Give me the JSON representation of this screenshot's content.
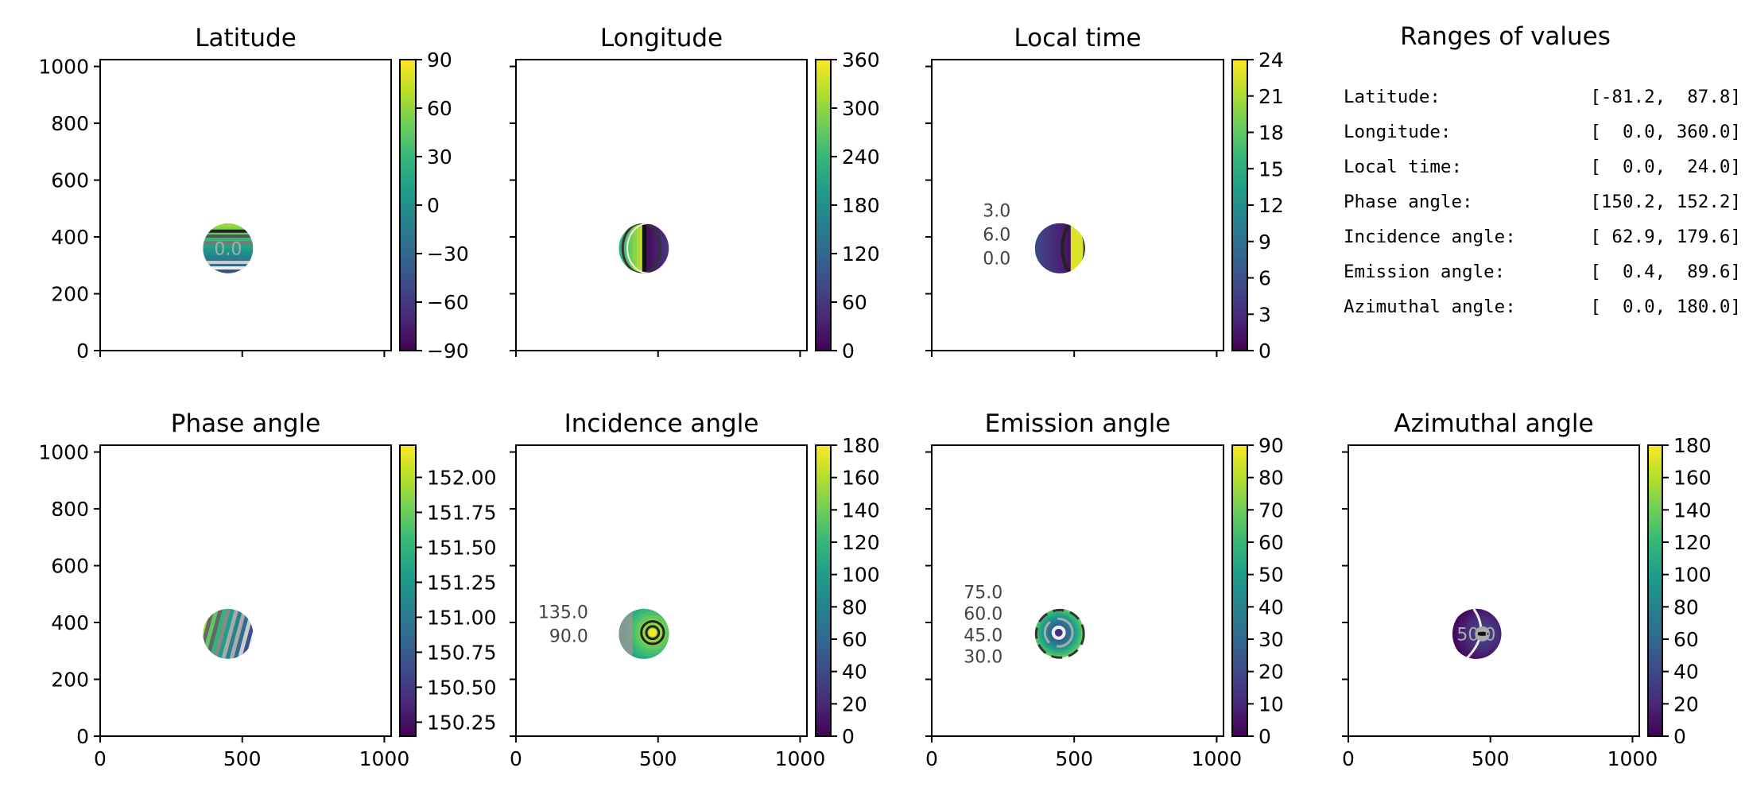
{
  "figure": {
    "colormap": "viridis",
    "viridis_stops": [
      "#440154",
      "#482878",
      "#3e4989",
      "#31688e",
      "#26828e",
      "#1f9e89",
      "#35b779",
      "#6ece58",
      "#b5de2b",
      "#fde725"
    ]
  },
  "chart_data": [
    {
      "type": "heatmap",
      "title": "Latitude",
      "xlim": [
        0,
        1024
      ],
      "ylim": [
        0,
        1024
      ],
      "xticks": [
        "0",
        "500",
        "1000"
      ],
      "xtick_values": [
        0,
        500,
        1000
      ],
      "show_xticklabels": false,
      "yticks": [
        "0",
        "200",
        "400",
        "600",
        "800",
        "1000"
      ],
      "ytick_values": [
        0,
        200,
        400,
        600,
        800,
        1000
      ],
      "show_yticklabels": true,
      "colorbar": {
        "range": [
          -90,
          90
        ],
        "ticks": [
          "−90",
          "−60",
          "−30",
          "0",
          "30",
          "60",
          "90"
        ],
        "tick_values": [
          -90,
          -60,
          -30,
          0,
          30,
          60,
          90
        ]
      },
      "disk": {
        "center": [
          450,
          360
        ],
        "radius": 88,
        "pattern": "latitude"
      },
      "contour_labels": [
        "0.0"
      ],
      "value_range": [
        -81.2,
        87.8
      ]
    },
    {
      "type": "heatmap",
      "title": "Longitude",
      "xlim": [
        0,
        1024
      ],
      "ylim": [
        0,
        1024
      ],
      "xticks": [
        "0",
        "500",
        "1000"
      ],
      "xtick_values": [
        0,
        500,
        1000
      ],
      "show_xticklabels": false,
      "yticks": [
        "0",
        "200",
        "400",
        "600",
        "800",
        "1000"
      ],
      "ytick_values": [
        0,
        200,
        400,
        600,
        800,
        1000
      ],
      "show_yticklabels": false,
      "colorbar": {
        "range": [
          0,
          360
        ],
        "ticks": [
          "0",
          "60",
          "120",
          "180",
          "240",
          "300",
          "360"
        ],
        "tick_values": [
          0,
          60,
          120,
          180,
          240,
          300,
          360
        ]
      },
      "disk": {
        "center": [
          450,
          360
        ],
        "radius": 88,
        "pattern": "longitude"
      },
      "contour_labels": [],
      "value_range": [
        0.0,
        360.0
      ]
    },
    {
      "type": "heatmap",
      "title": "Local time",
      "xlim": [
        0,
        1024
      ],
      "ylim": [
        0,
        1024
      ],
      "xticks": [
        "0",
        "500",
        "1000"
      ],
      "xtick_values": [
        0,
        500,
        1000
      ],
      "show_xticklabels": false,
      "yticks": [
        "0",
        "200",
        "400",
        "600",
        "800",
        "1000"
      ],
      "ytick_values": [
        0,
        200,
        400,
        600,
        800,
        1000
      ],
      "show_yticklabels": false,
      "colorbar": {
        "range": [
          0,
          24
        ],
        "ticks": [
          "0",
          "3",
          "6",
          "9",
          "12",
          "15",
          "18",
          "21",
          "24"
        ],
        "tick_values": [
          0,
          3,
          6,
          9,
          12,
          15,
          18,
          21,
          24
        ]
      },
      "disk": {
        "center": [
          450,
          360
        ],
        "radius": 88,
        "pattern": "localtime"
      },
      "contour_labels": [
        "3.0",
        "6.0",
        "0.0"
      ],
      "value_range": [
        0.0,
        24.0
      ]
    },
    {
      "type": "heatmap",
      "title": "Phase angle",
      "xlim": [
        0,
        1024
      ],
      "ylim": [
        0,
        1024
      ],
      "xticks": [
        "0",
        "500",
        "1000"
      ],
      "xtick_values": [
        0,
        500,
        1000
      ],
      "show_xticklabels": true,
      "yticks": [
        "0",
        "200",
        "400",
        "600",
        "800",
        "1000"
      ],
      "ytick_values": [
        0,
        200,
        400,
        600,
        800,
        1000
      ],
      "show_yticklabels": true,
      "colorbar": {
        "range": [
          150.15,
          152.23
        ],
        "ticks": [
          "150.25",
          "150.50",
          "150.75",
          "151.00",
          "151.25",
          "151.50",
          "151.75",
          "152.00"
        ],
        "tick_values": [
          150.25,
          150.5,
          150.75,
          151.0,
          151.25,
          151.5,
          151.75,
          152.0
        ]
      },
      "disk": {
        "center": [
          450,
          360
        ],
        "radius": 88,
        "pattern": "phase"
      },
      "contour_labels": [],
      "value_range": [
        150.2,
        152.2
      ]
    },
    {
      "type": "heatmap",
      "title": "Incidence angle",
      "xlim": [
        0,
        1024
      ],
      "ylim": [
        0,
        1024
      ],
      "xticks": [
        "0",
        "500",
        "1000"
      ],
      "xtick_values": [
        0,
        500,
        1000
      ],
      "show_xticklabels": true,
      "yticks": [
        "0",
        "200",
        "400",
        "600",
        "800",
        "1000"
      ],
      "ytick_values": [
        0,
        200,
        400,
        600,
        800,
        1000
      ],
      "show_yticklabels": false,
      "colorbar": {
        "range": [
          0,
          180
        ],
        "ticks": [
          "0",
          "20",
          "40",
          "60",
          "80",
          "100",
          "120",
          "140",
          "160",
          "180"
        ],
        "tick_values": [
          0,
          20,
          40,
          60,
          80,
          100,
          120,
          140,
          160,
          180
        ]
      },
      "disk": {
        "center": [
          450,
          360
        ],
        "radius": 88,
        "pattern": "incidence"
      },
      "contour_labels": [
        "135.0",
        "90.0"
      ],
      "value_range": [
        62.9,
        179.6
      ]
    },
    {
      "type": "heatmap",
      "title": "Emission angle",
      "xlim": [
        0,
        1024
      ],
      "ylim": [
        0,
        1024
      ],
      "xticks": [
        "0",
        "500",
        "1000"
      ],
      "xtick_values": [
        0,
        500,
        1000
      ],
      "show_xticklabels": true,
      "yticks": [
        "0",
        "200",
        "400",
        "600",
        "800",
        "1000"
      ],
      "ytick_values": [
        0,
        200,
        400,
        600,
        800,
        1000
      ],
      "show_yticklabels": false,
      "colorbar": {
        "range": [
          0,
          90
        ],
        "ticks": [
          "0",
          "10",
          "20",
          "30",
          "40",
          "50",
          "60",
          "70",
          "80",
          "90"
        ],
        "tick_values": [
          0,
          10,
          20,
          30,
          40,
          50,
          60,
          70,
          80,
          90
        ]
      },
      "disk": {
        "center": [
          450,
          360
        ],
        "radius": 88,
        "pattern": "emission"
      },
      "contour_labels": [
        "75.0",
        "60.0",
        "45.0",
        "30.0"
      ],
      "value_range": [
        0.4,
        89.6
      ]
    },
    {
      "type": "heatmap",
      "title": "Azimuthal angle",
      "xlim": [
        0,
        1024
      ],
      "ylim": [
        0,
        1024
      ],
      "xticks": [
        "0",
        "500",
        "1000"
      ],
      "xtick_values": [
        0,
        500,
        1000
      ],
      "show_xticklabels": true,
      "yticks": [
        "0",
        "200",
        "400",
        "600",
        "800",
        "1000"
      ],
      "ytick_values": [
        0,
        200,
        400,
        600,
        800,
        1000
      ],
      "show_yticklabels": false,
      "colorbar": {
        "range": [
          0,
          180
        ],
        "ticks": [
          "0",
          "20",
          "40",
          "60",
          "80",
          "100",
          "120",
          "140",
          "160",
          "180"
        ],
        "tick_values": [
          0,
          20,
          40,
          60,
          80,
          100,
          120,
          140,
          160,
          180
        ]
      },
      "disk": {
        "center": [
          450,
          360
        ],
        "radius": 88,
        "pattern": "azimuth"
      },
      "contour_labels": [
        "50.0"
      ],
      "value_range": [
        0.0,
        180.0
      ]
    }
  ],
  "ranges_box": {
    "title": "Ranges of values",
    "rows": [
      {
        "label": "Latitude:",
        "value": "[-81.2,  87.8]"
      },
      {
        "label": "Longitude:",
        "value": "[  0.0, 360.0]"
      },
      {
        "label": "Local time:",
        "value": "[  0.0,  24.0]"
      },
      {
        "label": "Phase angle:",
        "value": "[150.2, 152.2]"
      },
      {
        "label": "Incidence angle:",
        "value": "[ 62.9, 179.6]"
      },
      {
        "label": "Emission angle:",
        "value": "[  0.4,  89.6]"
      },
      {
        "label": "Azimuthal angle:",
        "value": "[  0.0, 180.0]"
      }
    ]
  }
}
